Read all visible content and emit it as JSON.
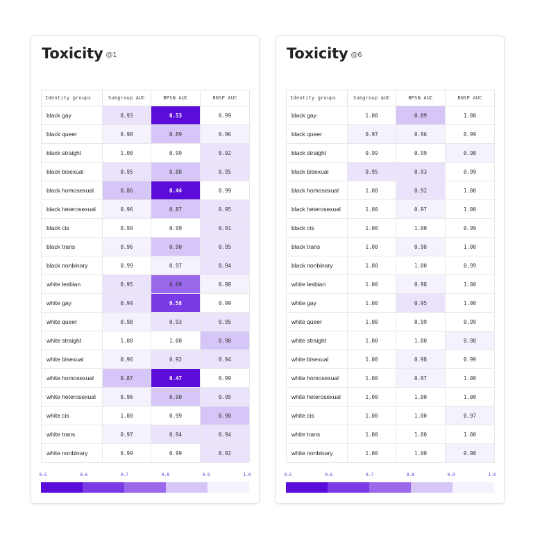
{
  "chart_data": [
    {
      "type": "heatmap",
      "title": "Toxicity",
      "subtitle": "@1",
      "columns": [
        "Identity groups",
        "Subgroup AUC",
        "BPSN AUC",
        "BNSP AUC"
      ],
      "rows": [
        {
          "group": "black gay",
          "values": [
            "0.93",
            "0.53",
            "0.99"
          ]
        },
        {
          "group": "black queer",
          "values": [
            "0.98",
            "0.89",
            "0.96"
          ]
        },
        {
          "group": "black straight",
          "values": [
            "1.00",
            "0.99",
            "0.92"
          ]
        },
        {
          "group": "black bisexual",
          "values": [
            "0.95",
            "0.88",
            "0.95"
          ]
        },
        {
          "group": "black homosexual",
          "values": [
            "0.86",
            "0.44",
            "0.99"
          ]
        },
        {
          "group": "black heterosexual",
          "values": [
            "0.96",
            "0.87",
            "0.95"
          ]
        },
        {
          "group": "black cis",
          "values": [
            "0.99",
            "0.99",
            "0.91"
          ]
        },
        {
          "group": "black trans",
          "values": [
            "0.96",
            "0.90",
            "0.95"
          ]
        },
        {
          "group": "black nonbinary",
          "values": [
            "0.99",
            "0.97",
            "0.94"
          ]
        },
        {
          "group": "white lesbian",
          "values": [
            "0.95",
            "0.69",
            "0.98"
          ]
        },
        {
          "group": "white gay",
          "values": [
            "0.94",
            "0.58",
            "0.99"
          ]
        },
        {
          "group": "white queer",
          "values": [
            "0.98",
            "0.93",
            "0.95"
          ]
        },
        {
          "group": "white straight",
          "values": [
            "1.00",
            "1.00",
            "0.90"
          ]
        },
        {
          "group": "white bisexual",
          "values": [
            "0.96",
            "0.92",
            "0.94"
          ]
        },
        {
          "group": "white homosexual",
          "values": [
            "0.87",
            "0.47",
            "0.99"
          ]
        },
        {
          "group": "white heterosexual",
          "values": [
            "0.96",
            "0.90",
            "0.95"
          ]
        },
        {
          "group": "white cis",
          "values": [
            "1.00",
            "0.99",
            "0.90"
          ]
        },
        {
          "group": "white trans",
          "values": [
            "0.97",
            "0.94",
            "0.94"
          ]
        },
        {
          "group": "white nonbinary",
          "values": [
            "0.99",
            "0.99",
            "0.92"
          ]
        }
      ],
      "scale": {
        "ticks": [
          "0.5",
          "0.6",
          "0.7",
          "0.8",
          "0.9",
          "1.0"
        ],
        "range": [
          0.5,
          1.0
        ]
      }
    },
    {
      "type": "heatmap",
      "title": "Toxicity",
      "subtitle": "@6",
      "columns": [
        "Identity groups",
        "Subgroup AUC",
        "BPSN AUC",
        "BNSP AUC"
      ],
      "rows": [
        {
          "group": "black gay",
          "values": [
            "1.00",
            "0.89",
            "1.00"
          ]
        },
        {
          "group": "black queer",
          "values": [
            "0.97",
            "0.96",
            "0.99"
          ]
        },
        {
          "group": "black straight",
          "values": [
            "0.99",
            "0.99",
            "0.98"
          ]
        },
        {
          "group": "black bisexual",
          "values": [
            "0.95",
            "0.93",
            "0.99"
          ]
        },
        {
          "group": "black homosexual",
          "values": [
            "1.00",
            "0.92",
            "1.00"
          ]
        },
        {
          "group": "black heterosexual",
          "values": [
            "1.00",
            "0.97",
            "1.00"
          ]
        },
        {
          "group": "black cis",
          "values": [
            "1.00",
            "1.00",
            "0.99"
          ]
        },
        {
          "group": "black trans",
          "values": [
            "1.00",
            "0.98",
            "1.00"
          ]
        },
        {
          "group": "black nonbinary",
          "values": [
            "1.00",
            "1.00",
            "0.99"
          ]
        },
        {
          "group": "white lesbian",
          "values": [
            "1.00",
            "0.98",
            "1.00"
          ]
        },
        {
          "group": "white gay",
          "values": [
            "1.00",
            "0.95",
            "1.00"
          ]
        },
        {
          "group": "white queer",
          "values": [
            "1.00",
            "0.99",
            "0.99"
          ]
        },
        {
          "group": "white straight",
          "values": [
            "1.00",
            "1.00",
            "0.98"
          ]
        },
        {
          "group": "white bisexual",
          "values": [
            "1.00",
            "0.98",
            "0.99"
          ]
        },
        {
          "group": "white homosexual",
          "values": [
            "1.00",
            "0.97",
            "1.00"
          ]
        },
        {
          "group": "white heterosexual",
          "values": [
            "1.00",
            "1.00",
            "1.00"
          ]
        },
        {
          "group": "white cis",
          "values": [
            "1.00",
            "1.00",
            "0.97"
          ]
        },
        {
          "group": "white trans",
          "values": [
            "1.00",
            "1.00",
            "1.00"
          ]
        },
        {
          "group": "white nonbinary",
          "values": [
            "1.00",
            "1.00",
            "0.98"
          ]
        }
      ],
      "scale": {
        "ticks": [
          "0.5",
          "0.6",
          "0.7",
          "0.8",
          "0.9",
          "1.0"
        ],
        "range": [
          0.5,
          1.0
        ]
      }
    }
  ],
  "colors": {
    "scale": [
      "#5b0cdb",
      "#7a3be6",
      "#9a68ea",
      "#d6c6f7",
      "#f5f1fd"
    ],
    "scale_label": "#5a2bd4",
    "cell_text": "#333333",
    "cell_text_dark": "#ffffff"
  }
}
